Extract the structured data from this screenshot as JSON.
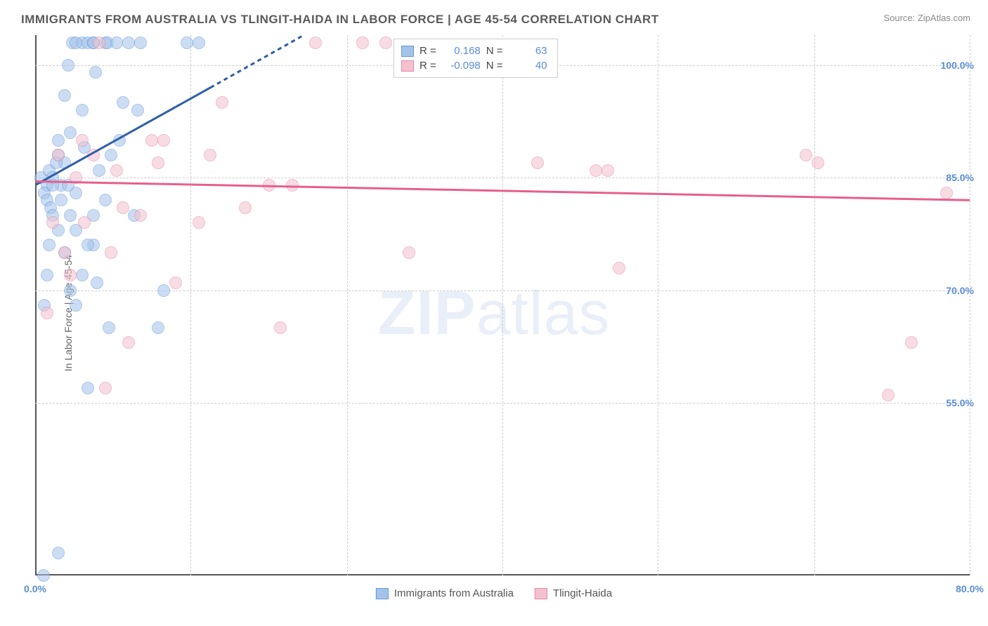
{
  "title": "IMMIGRANTS FROM AUSTRALIA VS TLINGIT-HAIDA IN LABOR FORCE | AGE 45-54 CORRELATION CHART",
  "source_label": "Source: ZipAtlas.com",
  "ylabel": "In Labor Force | Age 45-54",
  "watermark_bold": "ZIP",
  "watermark_normal": "atlas",
  "chart": {
    "type": "scatter",
    "xlim": [
      0,
      80
    ],
    "ylim": [
      32,
      104
    ],
    "y_gridlines": [
      55.0,
      70.0,
      85.0,
      100.0
    ],
    "y_tick_labels": [
      "55.0%",
      "70.0%",
      "85.0%",
      "100.0%"
    ],
    "x_ticks": [
      0,
      40,
      80
    ],
    "x_tick_labels": [
      "0.0%",
      "",
      "80.0%"
    ],
    "x_minor_gridlines": [
      13.3,
      26.7,
      40,
      53.3,
      66.7,
      80
    ],
    "background_color": "#ffffff",
    "grid_color": "#cccccc",
    "axis_color": "#555555"
  },
  "series": [
    {
      "name": "Immigrants from Australia",
      "fill_color": "#a3c3ea",
      "stroke_color": "#6699d8",
      "marker_size": 18,
      "R": "0.168",
      "N": "63",
      "trend": {
        "x1": 0,
        "y1": 84,
        "x2_solid": 15,
        "y2_solid": 97,
        "x2_dash": 23,
        "y2_dash": 104,
        "color": "#2e5fa9",
        "width": 3
      },
      "points": [
        [
          0.5,
          85
        ],
        [
          1,
          84
        ],
        [
          1.2,
          86
        ],
        [
          0.8,
          83
        ],
        [
          1.5,
          85
        ],
        [
          0.7,
          32
        ],
        [
          1,
          82
        ],
        [
          1.3,
          81
        ],
        [
          2,
          35
        ],
        [
          2,
          88
        ],
        [
          2.5,
          87
        ],
        [
          2.2,
          84
        ],
        [
          3,
          91
        ],
        [
          3.5,
          83
        ],
        [
          3,
          80
        ],
        [
          3.2,
          103
        ],
        [
          4,
          103
        ],
        [
          4.5,
          103
        ],
        [
          4,
          94
        ],
        [
          4.2,
          89
        ],
        [
          4.5,
          57
        ],
        [
          5,
          103
        ],
        [
          5.2,
          99
        ],
        [
          5.5,
          86
        ],
        [
          5,
          76
        ],
        [
          5.3,
          71
        ],
        [
          6,
          103
        ],
        [
          6.2,
          103
        ],
        [
          6.5,
          88
        ],
        [
          6,
          82
        ],
        [
          6.3,
          65
        ],
        [
          7,
          103
        ],
        [
          7.5,
          95
        ],
        [
          7.2,
          90
        ],
        [
          8,
          103
        ],
        [
          8.5,
          80
        ],
        [
          8.8,
          94
        ],
        [
          9,
          103
        ],
        [
          5,
          103
        ],
        [
          3.5,
          103
        ],
        [
          2.8,
          100
        ],
        [
          2.5,
          96
        ],
        [
          2,
          90
        ],
        [
          1.8,
          87
        ],
        [
          1.5,
          80
        ],
        [
          1.2,
          76
        ],
        [
          1,
          72
        ],
        [
          0.8,
          68
        ],
        [
          11,
          70
        ],
        [
          10.5,
          65
        ],
        [
          13,
          103
        ],
        [
          14,
          103
        ],
        [
          3.5,
          78
        ],
        [
          2.8,
          84
        ],
        [
          2.2,
          82
        ],
        [
          1.5,
          84
        ],
        [
          2,
          78
        ],
        [
          2.5,
          75
        ],
        [
          3,
          70
        ],
        [
          3.5,
          68
        ],
        [
          4,
          72
        ],
        [
          4.5,
          76
        ],
        [
          5,
          80
        ]
      ]
    },
    {
      "name": "Tlingit-Haida",
      "fill_color": "#f4c1cf",
      "stroke_color": "#e986a6",
      "marker_size": 18,
      "R": "-0.098",
      "N": "40",
      "trend": {
        "x1": 0,
        "y1": 84.5,
        "x2_solid": 80,
        "y2_solid": 82,
        "color": "#e65f8e",
        "width": 3
      },
      "points": [
        [
          1,
          67
        ],
        [
          1.5,
          79
        ],
        [
          2,
          88
        ],
        [
          2.5,
          75
        ],
        [
          3,
          72
        ],
        [
          3.5,
          85
        ],
        [
          4,
          90
        ],
        [
          4.2,
          79
        ],
        [
          5,
          88
        ],
        [
          5.5,
          103
        ],
        [
          6,
          57
        ],
        [
          6.5,
          75
        ],
        [
          7,
          86
        ],
        [
          7.5,
          81
        ],
        [
          8,
          63
        ],
        [
          9,
          80
        ],
        [
          10,
          90
        ],
        [
          10.5,
          87
        ],
        [
          11,
          90
        ],
        [
          12,
          71
        ],
        [
          14,
          79
        ],
        [
          15,
          88
        ],
        [
          16,
          95
        ],
        [
          18,
          81
        ],
        [
          20,
          84
        ],
        [
          21,
          65
        ],
        [
          22,
          84
        ],
        [
          24,
          103
        ],
        [
          28,
          103
        ],
        [
          30,
          103
        ],
        [
          32,
          75
        ],
        [
          43,
          87
        ],
        [
          48,
          86
        ],
        [
          49,
          86
        ],
        [
          50,
          73
        ],
        [
          66,
          88
        ],
        [
          67,
          87
        ],
        [
          73,
          56
        ],
        [
          75,
          63
        ],
        [
          78,
          83
        ]
      ]
    }
  ],
  "stats_box": {
    "rows": [
      {
        "swatch_fill": "#a3c3ea",
        "swatch_stroke": "#6699d8",
        "r_label": "R =",
        "r_val": "0.168",
        "n_label": "N =",
        "n_val": "63"
      },
      {
        "swatch_fill": "#f4c1cf",
        "swatch_stroke": "#e986a6",
        "r_label": "R =",
        "r_val": "-0.098",
        "n_label": "N =",
        "n_val": "40"
      }
    ]
  },
  "legend": [
    {
      "swatch_fill": "#a3c3ea",
      "swatch_stroke": "#6699d8",
      "label": "Immigrants from Australia"
    },
    {
      "swatch_fill": "#f4c1cf",
      "swatch_stroke": "#e986a6",
      "label": "Tlingit-Haida"
    }
  ]
}
